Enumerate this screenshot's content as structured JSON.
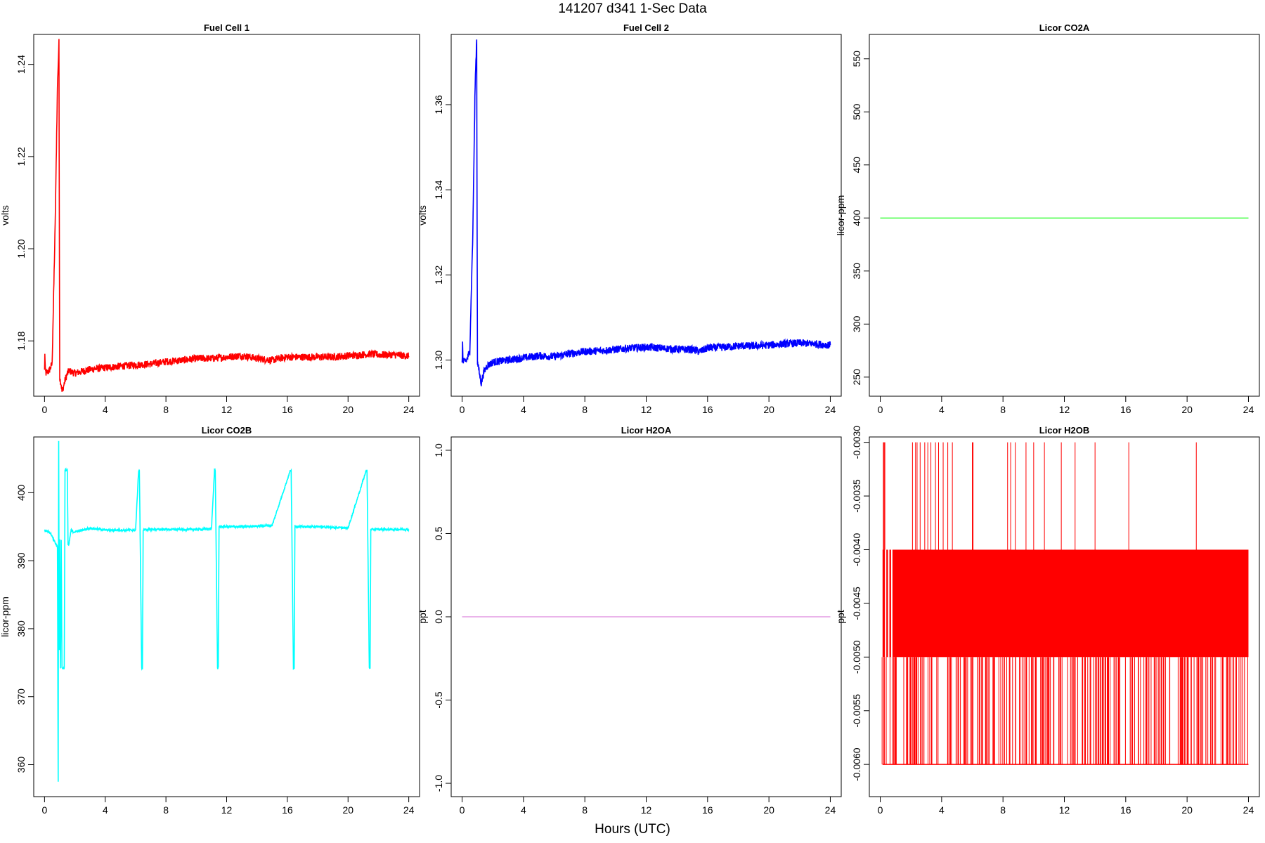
{
  "figure": {
    "suptitle": "141207   d341   1-Sec Data",
    "xlabel": "Hours (UTC)"
  },
  "chart_data": [
    {
      "type": "line",
      "title": "Fuel Cell 1",
      "ylabel": "volts",
      "color": "#ff0000",
      "xlim": [
        0,
        24
      ],
      "ylim": [
        1.168,
        1.2465
      ],
      "xticks": [
        0,
        4,
        8,
        12,
        16,
        20,
        24
      ],
      "yticks": [
        1.18,
        1.2,
        1.22,
        1.24
      ],
      "ytick_labels": [
        "1.18",
        "1.20",
        "1.22",
        "1.24"
      ],
      "series": [
        {
          "x": [
            0,
            0.02,
            0.05,
            0.1,
            0.3,
            0.5,
            0.7,
            0.85,
            0.95,
            1.0,
            1.1,
            1.15,
            1.2,
            1.4,
            1.6,
            2,
            3,
            4,
            5,
            6,
            7,
            8,
            9,
            10,
            11,
            12,
            13,
            14,
            15,
            15.5,
            16,
            17,
            18,
            19,
            20,
            21,
            21.5,
            22,
            23,
            24
          ],
          "y": [
            1.1735,
            1.1775,
            1.1735,
            1.173,
            1.1735,
            1.175,
            1.205,
            1.235,
            1.2448,
            1.172,
            1.1705,
            1.169,
            1.1695,
            1.172,
            1.1735,
            1.173,
            1.1738,
            1.1742,
            1.1745,
            1.1748,
            1.175,
            1.1755,
            1.1758,
            1.1762,
            1.1762,
            1.1765,
            1.1768,
            1.1762,
            1.1758,
            1.1762,
            1.1765,
            1.1765,
            1.1765,
            1.1765,
            1.1768,
            1.177,
            1.1772,
            1.177,
            1.177,
            1.1767
          ],
          "noise": 0.0008
        }
      ]
    },
    {
      "type": "line",
      "title": "Fuel Cell 2",
      "ylabel": "volts",
      "color": "#0000ff",
      "xlim": [
        0,
        24
      ],
      "ylim": [
        1.2915,
        1.3765
      ],
      "xticks": [
        0,
        4,
        8,
        12,
        16,
        20,
        24
      ],
      "yticks": [
        1.3,
        1.32,
        1.34,
        1.36
      ],
      "ytick_labels": [
        "1.30",
        "1.32",
        "1.34",
        "1.36"
      ],
      "series": [
        {
          "x": [
            0,
            0.03,
            0.06,
            0.1,
            0.3,
            0.5,
            0.7,
            0.85,
            0.95,
            1.0,
            1.1,
            1.25,
            1.4,
            1.6,
            2,
            3,
            4,
            5,
            6,
            7,
            8,
            9,
            10,
            11,
            12,
            13,
            14,
            15,
            15.5,
            16,
            17,
            18,
            19,
            20,
            21,
            22,
            23,
            24
          ],
          "y": [
            1.2995,
            1.304,
            1.2995,
            1.2995,
            1.3,
            1.302,
            1.33,
            1.365,
            1.3755,
            1.2995,
            1.2975,
            1.2945,
            1.297,
            1.2985,
            1.2995,
            1.3,
            1.3005,
            1.301,
            1.3008,
            1.3015,
            1.302,
            1.3022,
            1.3025,
            1.3028,
            1.303,
            1.3028,
            1.3025,
            1.3025,
            1.302,
            1.3028,
            1.303,
            1.3033,
            1.3033,
            1.3035,
            1.3038,
            1.304,
            1.3038,
            1.3035
          ],
          "noise": 0.0009
        }
      ]
    },
    {
      "type": "line",
      "title": "Licor CO2A",
      "ylabel": "licor-ppm",
      "color": "#00ff00",
      "xlim": [
        0,
        24
      ],
      "ylim": [
        232,
        573
      ],
      "xticks": [
        0,
        4,
        8,
        12,
        16,
        20,
        24
      ],
      "yticks": [
        250,
        300,
        350,
        400,
        450,
        500,
        550
      ],
      "ytick_labels": [
        "250",
        "300",
        "350",
        "400",
        "450",
        "500",
        "550"
      ],
      "series": [
        {
          "x": [
            0,
            24
          ],
          "y": [
            400,
            400
          ],
          "noise": 0
        }
      ]
    },
    {
      "type": "line",
      "title": "Licor CO2B",
      "ylabel": "licor-ppm",
      "color": "#00ffff",
      "xlim": [
        0,
        24
      ],
      "ylim": [
        355.3,
        408.2
      ],
      "xticks": [
        0,
        4,
        8,
        12,
        16,
        20,
        24
      ],
      "yticks": [
        360,
        370,
        380,
        390,
        400
      ],
      "ytick_labels": [
        "360",
        "370",
        "380",
        "390",
        "400"
      ],
      "series": [
        {
          "x": [
            0,
            0.4,
            0.85,
            0.9,
            0.93,
            0.95,
            0.98,
            1.0,
            1.05,
            1.1,
            1.15,
            1.2,
            1.25,
            1.3,
            1.35,
            1.5,
            1.55,
            1.6,
            1.7,
            1.75,
            1.8,
            1.9,
            2.5,
            3,
            4,
            5,
            6,
            6.2,
            6.25,
            6.4,
            6.45,
            6.5,
            6.6,
            8,
            10,
            11,
            11.2,
            11.25,
            11.4,
            11.45,
            11.5,
            11.6,
            13,
            15,
            16.2,
            16.25,
            16.4,
            16.45,
            16.5,
            16.6,
            18,
            20,
            21.2,
            21.25,
            21.4,
            21.45,
            21.5,
            21.6,
            22,
            24
          ],
          "y": [
            394.5,
            394,
            392,
            357.5,
            407.7,
            392,
            377,
            393,
            374.2,
            393,
            374.2,
            374.2,
            374.2,
            374.2,
            403.3,
            403.3,
            392.3,
            392.3,
            393.8,
            394.5,
            394.5,
            394.2,
            394.5,
            394.8,
            394.5,
            394.5,
            394.5,
            403.3,
            403.3,
            374.2,
            374.2,
            394.5,
            394.6,
            394.6,
            394.6,
            394.7,
            403.3,
            403.3,
            374.2,
            374.2,
            395,
            395,
            395,
            395.2,
            403.3,
            403.3,
            374.2,
            374.2,
            395.2,
            395,
            395,
            394.8,
            403.3,
            403.3,
            374.2,
            374.2,
            394.6,
            394.6,
            394.6,
            394.6
          ],
          "noise": 0.15
        }
      ]
    },
    {
      "type": "line",
      "title": "Licor H2OA",
      "ylabel": "ppt",
      "color": "#dd88dd",
      "xlim": [
        0,
        24
      ],
      "ylim": [
        -1.08,
        1.08
      ],
      "xticks": [
        0,
        4,
        8,
        12,
        16,
        20,
        24
      ],
      "yticks": [
        -1.0,
        -0.5,
        0.0,
        0.5,
        1.0
      ],
      "ytick_labels": [
        "-1.0",
        "-0.5",
        "0.0",
        "0.5",
        "1.0"
      ],
      "series": [
        {
          "x": [
            0,
            24
          ],
          "y": [
            0,
            0
          ],
          "noise": 0
        }
      ]
    },
    {
      "type": "line",
      "title": "Licor H2OB",
      "ylabel": "ppt",
      "color": "#ff0000",
      "xlim": [
        0,
        24
      ],
      "ylim": [
        -0.0063,
        -0.00295
      ],
      "xticks": [
        0,
        4,
        8,
        12,
        16,
        20,
        24
      ],
      "yticks": [
        -0.006,
        -0.0055,
        -0.005,
        -0.0045,
        -0.004,
        -0.0035,
        -0.003
      ],
      "ytick_labels": [
        "-0.0060",
        "-0.0055",
        "-0.0050",
        "-0.0045",
        "-0.0040",
        "-0.0035",
        "-0.0030"
      ],
      "series": [
        {
          "levels": [
            -0.006,
            -0.005,
            -0.004,
            -0.003
          ],
          "band_x": [
            0.15,
            24
          ],
          "band_y": [
            -0.005,
            -0.004
          ],
          "spikes_up_x": [
            0.2,
            0.25,
            0.3,
            2.1,
            2.3,
            2.4,
            2.6,
            2.9,
            3.1,
            3.3,
            3.6,
            3.8,
            4.1,
            4.4,
            4.7,
            6.0,
            6.05,
            8.3,
            8.5,
            8.8,
            9.5,
            10.0,
            10.7,
            11.8,
            12.7,
            14.0,
            16.2,
            20.6
          ],
          "spikes_down_count": 260
        }
      ]
    }
  ]
}
